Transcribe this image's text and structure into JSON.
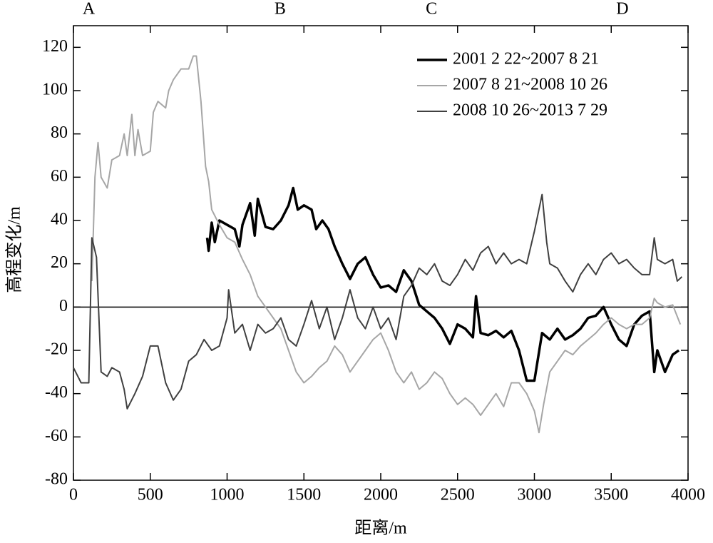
{
  "chart_data": {
    "type": "line",
    "xlabel": "距离/m",
    "ylabel": "高程变化/m",
    "xlim": [
      0,
      4000
    ],
    "ylim": [
      -80,
      130
    ],
    "xticks": [
      0,
      500,
      1000,
      1500,
      2000,
      2500,
      3000,
      3500,
      4000
    ],
    "yticks": [
      -80,
      -60,
      -40,
      -20,
      0,
      20,
      40,
      60,
      80,
      100,
      120
    ],
    "legend": "upper right",
    "annotations": [
      {
        "text": "A",
        "x": 100
      },
      {
        "text": "B",
        "x": 1345
      },
      {
        "text": "C",
        "x": 2330
      },
      {
        "text": "D",
        "x": 3573
      }
    ],
    "series": [
      {
        "name": "2001 2 22~2007 8 21",
        "color": "#000000",
        "x": [
          870,
          880,
          900,
          920,
          950,
          1000,
          1050,
          1080,
          1100,
          1150,
          1180,
          1200,
          1250,
          1300,
          1350,
          1400,
          1430,
          1460,
          1500,
          1550,
          1580,
          1620,
          1660,
          1700,
          1750,
          1800,
          1850,
          1900,
          1950,
          2000,
          2050,
          2100,
          2150,
          2200,
          2250,
          2300,
          2350,
          2400,
          2450,
          2500,
          2550,
          2600,
          2620,
          2650,
          2700,
          2750,
          2800,
          2850,
          2900,
          2950,
          3000,
          3050,
          3100,
          3150,
          3200,
          3250,
          3300,
          3350,
          3400,
          3450,
          3500,
          3550,
          3600,
          3650,
          3700,
          3750,
          3780,
          3800,
          3850,
          3900,
          3940
        ],
        "values": [
          32,
          26,
          39,
          30,
          40,
          38,
          36,
          28,
          38,
          48,
          33,
          50,
          37,
          36,
          40,
          47,
          55,
          45,
          47,
          45,
          36,
          40,
          36,
          28,
          20,
          13,
          20,
          23,
          15,
          9,
          10,
          7,
          17,
          12,
          1,
          -2,
          -5,
          -10,
          -17,
          -8,
          -10,
          -14,
          5,
          -12,
          -13,
          -11,
          -14,
          -11,
          -20,
          -34,
          -34,
          -12,
          -15,
          -10,
          -15,
          -13,
          -10,
          -5,
          -4,
          0,
          -8,
          -15,
          -18,
          -8,
          -4,
          -2,
          -30,
          -20,
          -30,
          -22,
          -20
        ]
      },
      {
        "name": "2007 8 21~2008 10 26",
        "color": "#a6a6a6",
        "x": [
          120,
          140,
          160,
          180,
          220,
          250,
          300,
          330,
          350,
          380,
          400,
          420,
          450,
          500,
          520,
          550,
          600,
          620,
          650,
          700,
          750,
          780,
          800,
          830,
          860,
          880,
          900,
          950,
          1000,
          1050,
          1100,
          1150,
          1200,
          1250,
          1300,
          1350,
          1400,
          1450,
          1500,
          1550,
          1600,
          1650,
          1700,
          1750,
          1800,
          1850,
          1900,
          1950,
          2000,
          2050,
          2100,
          2150,
          2200,
          2250,
          2300,
          2350,
          2400,
          2450,
          2500,
          2550,
          2600,
          2650,
          2700,
          2750,
          2800,
          2850,
          2900,
          2950,
          3000,
          3030,
          3060,
          3100,
          3150,
          3200,
          3250,
          3300,
          3350,
          3400,
          3450,
          3500,
          3550,
          3600,
          3650,
          3700,
          3750,
          3780,
          3800,
          3850,
          3900,
          3950
        ],
        "values": [
          12,
          60,
          76,
          60,
          55,
          68,
          70,
          80,
          70,
          89,
          70,
          82,
          70,
          72,
          90,
          95,
          92,
          100,
          105,
          110,
          110,
          116,
          116,
          95,
          65,
          58,
          45,
          38,
          32,
          30,
          22,
          15,
          5,
          0,
          -5,
          -10,
          -20,
          -30,
          -35,
          -32,
          -28,
          -25,
          -18,
          -22,
          -30,
          -25,
          -20,
          -15,
          -12,
          -20,
          -30,
          -35,
          -30,
          -38,
          -35,
          -30,
          -33,
          -40,
          -45,
          -42,
          -45,
          -50,
          -45,
          -40,
          -46,
          -35,
          -35,
          -40,
          -48,
          -58,
          -45,
          -30,
          -25,
          -20,
          -22,
          -18,
          -15,
          -12,
          -8,
          -5,
          -8,
          -10,
          -8,
          -8,
          -5,
          4,
          2,
          0,
          1,
          -8
        ]
      },
      {
        "name": "2008 10 26~2013 7 29",
        "color": "#404040",
        "x": [
          0,
          50,
          100,
          120,
          150,
          180,
          220,
          250,
          300,
          330,
          350,
          400,
          450,
          500,
          550,
          600,
          650,
          700,
          750,
          800,
          850,
          900,
          950,
          1000,
          1010,
          1050,
          1100,
          1150,
          1200,
          1250,
          1300,
          1350,
          1400,
          1450,
          1500,
          1550,
          1600,
          1650,
          1700,
          1750,
          1800,
          1850,
          1900,
          1950,
          2000,
          2050,
          2100,
          2150,
          2200,
          2250,
          2300,
          2350,
          2400,
          2450,
          2500,
          2550,
          2600,
          2650,
          2700,
          2750,
          2800,
          2850,
          2900,
          2950,
          3000,
          3050,
          3080,
          3100,
          3150,
          3200,
          3250,
          3300,
          3350,
          3400,
          3450,
          3500,
          3550,
          3600,
          3650,
          3700,
          3750,
          3780,
          3800,
          3850,
          3900,
          3930,
          3960
        ],
        "values": [
          -28,
          -35,
          -35,
          32,
          23,
          -30,
          -32,
          -28,
          -30,
          -38,
          -47,
          -40,
          -32,
          -18,
          -18,
          -35,
          -43,
          -38,
          -25,
          -22,
          -15,
          -20,
          -18,
          -5,
          8,
          -12,
          -8,
          -20,
          -8,
          -12,
          -10,
          -5,
          -15,
          -18,
          -8,
          3,
          -10,
          0,
          -15,
          -5,
          8,
          -5,
          -10,
          0,
          -10,
          -5,
          -15,
          5,
          10,
          18,
          15,
          20,
          12,
          10,
          15,
          22,
          17,
          25,
          28,
          20,
          25,
          20,
          22,
          20,
          35,
          52,
          30,
          20,
          18,
          12,
          7,
          15,
          20,
          15,
          22,
          25,
          20,
          22,
          18,
          15,
          15,
          32,
          22,
          20,
          22,
          12,
          14
        ]
      }
    ]
  }
}
